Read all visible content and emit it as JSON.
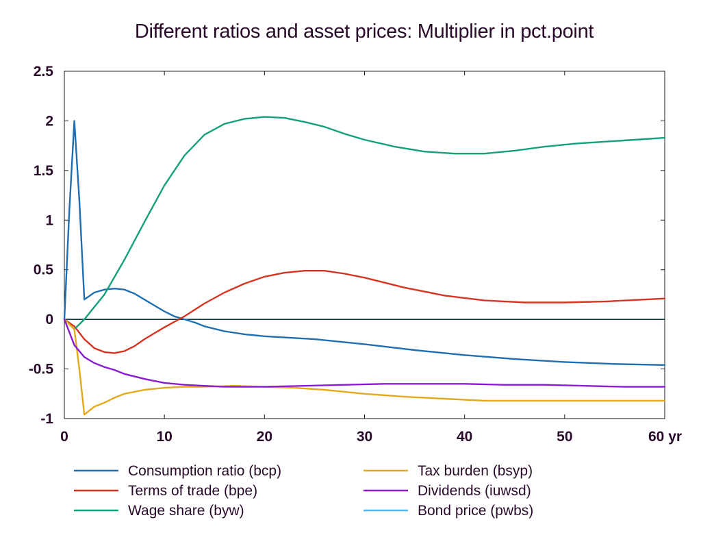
{
  "chart_data": {
    "type": "line",
    "title": "Different ratios and asset prices: Multiplier in pct.point",
    "xlabel": "",
    "ylabel": "",
    "xlim": [
      0,
      60
    ],
    "ylim": [
      -1,
      2.5
    ],
    "x_ticks": [
      {
        "value": 0,
        "label": "0"
      },
      {
        "value": 10,
        "label": "10"
      },
      {
        "value": 20,
        "label": "20"
      },
      {
        "value": 30,
        "label": "30"
      },
      {
        "value": 40,
        "label": "40"
      },
      {
        "value": 50,
        "label": "50"
      },
      {
        "value": 60,
        "label": "60 yr"
      }
    ],
    "y_ticks": [
      {
        "value": -1,
        "label": "-1"
      },
      {
        "value": -0.5,
        "label": "-0.5"
      },
      {
        "value": 0,
        "label": "0"
      },
      {
        "value": 0.5,
        "label": "0.5"
      },
      {
        "value": 1,
        "label": "1"
      },
      {
        "value": 1.5,
        "label": "1.5"
      },
      {
        "value": 2,
        "label": "2"
      },
      {
        "value": 2.5,
        "label": "2.5"
      }
    ],
    "grid": false,
    "zero_line": true,
    "legend_position": "bottom",
    "series": [
      {
        "name": "Consumption ratio (bcp)",
        "color": "#1f6fb0",
        "points": [
          [
            0,
            0
          ],
          [
            0.5,
            1.1
          ],
          [
            1,
            2.0
          ],
          [
            1.5,
            1.2
          ],
          [
            2,
            0.2
          ],
          [
            3,
            0.27
          ],
          [
            4,
            0.3
          ],
          [
            5,
            0.31
          ],
          [
            6,
            0.3
          ],
          [
            7,
            0.26
          ],
          [
            8,
            0.2
          ],
          [
            9,
            0.14
          ],
          [
            10,
            0.08
          ],
          [
            11,
            0.03
          ],
          [
            12,
            0.0
          ],
          [
            13,
            -0.03
          ],
          [
            14,
            -0.07
          ],
          [
            16,
            -0.12
          ],
          [
            18,
            -0.15
          ],
          [
            20,
            -0.17
          ],
          [
            25,
            -0.2
          ],
          [
            30,
            -0.25
          ],
          [
            35,
            -0.31
          ],
          [
            40,
            -0.36
          ],
          [
            45,
            -0.4
          ],
          [
            50,
            -0.43
          ],
          [
            55,
            -0.45
          ],
          [
            60,
            -0.46
          ]
        ]
      },
      {
        "name": "Terms of trade (bpe)",
        "color": "#d63320",
        "points": [
          [
            0,
            0
          ],
          [
            1,
            -0.07
          ],
          [
            2,
            -0.2
          ],
          [
            3,
            -0.29
          ],
          [
            4,
            -0.33
          ],
          [
            5,
            -0.34
          ],
          [
            6,
            -0.32
          ],
          [
            7,
            -0.27
          ],
          [
            8,
            -0.2
          ],
          [
            10,
            -0.08
          ],
          [
            12,
            0.03
          ],
          [
            14,
            0.16
          ],
          [
            16,
            0.27
          ],
          [
            18,
            0.36
          ],
          [
            20,
            0.43
          ],
          [
            22,
            0.47
          ],
          [
            24,
            0.49
          ],
          [
            26,
            0.49
          ],
          [
            28,
            0.46
          ],
          [
            30,
            0.42
          ],
          [
            34,
            0.32
          ],
          [
            38,
            0.24
          ],
          [
            42,
            0.19
          ],
          [
            46,
            0.17
          ],
          [
            50,
            0.17
          ],
          [
            54,
            0.18
          ],
          [
            58,
            0.2
          ],
          [
            60,
            0.21
          ]
        ]
      },
      {
        "name": "Wage share (byw)",
        "color": "#14a07a",
        "points": [
          [
            0,
            0
          ],
          [
            1,
            -0.1
          ],
          [
            2,
            0.0
          ],
          [
            4,
            0.25
          ],
          [
            6,
            0.6
          ],
          [
            8,
            0.98
          ],
          [
            10,
            1.35
          ],
          [
            12,
            1.65
          ],
          [
            14,
            1.86
          ],
          [
            16,
            1.97
          ],
          [
            18,
            2.02
          ],
          [
            20,
            2.04
          ],
          [
            22,
            2.03
          ],
          [
            24,
            1.99
          ],
          [
            26,
            1.94
          ],
          [
            28,
            1.87
          ],
          [
            30,
            1.81
          ],
          [
            33,
            1.74
          ],
          [
            36,
            1.69
          ],
          [
            39,
            1.67
          ],
          [
            42,
            1.67
          ],
          [
            45,
            1.7
          ],
          [
            48,
            1.74
          ],
          [
            51,
            1.77
          ],
          [
            54,
            1.79
          ],
          [
            57,
            1.81
          ],
          [
            60,
            1.83
          ]
        ]
      },
      {
        "name": "Tax burden (bsyp)",
        "color": "#e3a81c",
        "points": [
          [
            0,
            0
          ],
          [
            1,
            -0.1
          ],
          [
            1.5,
            -0.5
          ],
          [
            2,
            -0.96
          ],
          [
            3,
            -0.88
          ],
          [
            4,
            -0.84
          ],
          [
            5,
            -0.79
          ],
          [
            6,
            -0.75
          ],
          [
            8,
            -0.71
          ],
          [
            10,
            -0.69
          ],
          [
            12,
            -0.68
          ],
          [
            14,
            -0.68
          ],
          [
            17,
            -0.67
          ],
          [
            20,
            -0.68
          ],
          [
            23,
            -0.69
          ],
          [
            26,
            -0.71
          ],
          [
            30,
            -0.75
          ],
          [
            34,
            -0.78
          ],
          [
            38,
            -0.8
          ],
          [
            42,
            -0.82
          ],
          [
            46,
            -0.82
          ],
          [
            50,
            -0.82
          ],
          [
            55,
            -0.82
          ],
          [
            60,
            -0.82
          ]
        ]
      },
      {
        "name": "Dividends (iuwsd)",
        "color": "#8a1bd1",
        "points": [
          [
            0,
            0
          ],
          [
            1,
            -0.26
          ],
          [
            2,
            -0.38
          ],
          [
            3,
            -0.44
          ],
          [
            4,
            -0.48
          ],
          [
            5,
            -0.51
          ],
          [
            6,
            -0.55
          ],
          [
            8,
            -0.6
          ],
          [
            10,
            -0.64
          ],
          [
            12,
            -0.66
          ],
          [
            14,
            -0.67
          ],
          [
            16,
            -0.68
          ],
          [
            18,
            -0.68
          ],
          [
            20,
            -0.68
          ],
          [
            24,
            -0.67
          ],
          [
            28,
            -0.66
          ],
          [
            32,
            -0.65
          ],
          [
            36,
            -0.65
          ],
          [
            40,
            -0.65
          ],
          [
            44,
            -0.66
          ],
          [
            48,
            -0.66
          ],
          [
            52,
            -0.67
          ],
          [
            56,
            -0.68
          ],
          [
            60,
            -0.68
          ]
        ]
      },
      {
        "name": "Bond price (pwbs)",
        "color": "#55b4e8",
        "points": []
      }
    ]
  }
}
